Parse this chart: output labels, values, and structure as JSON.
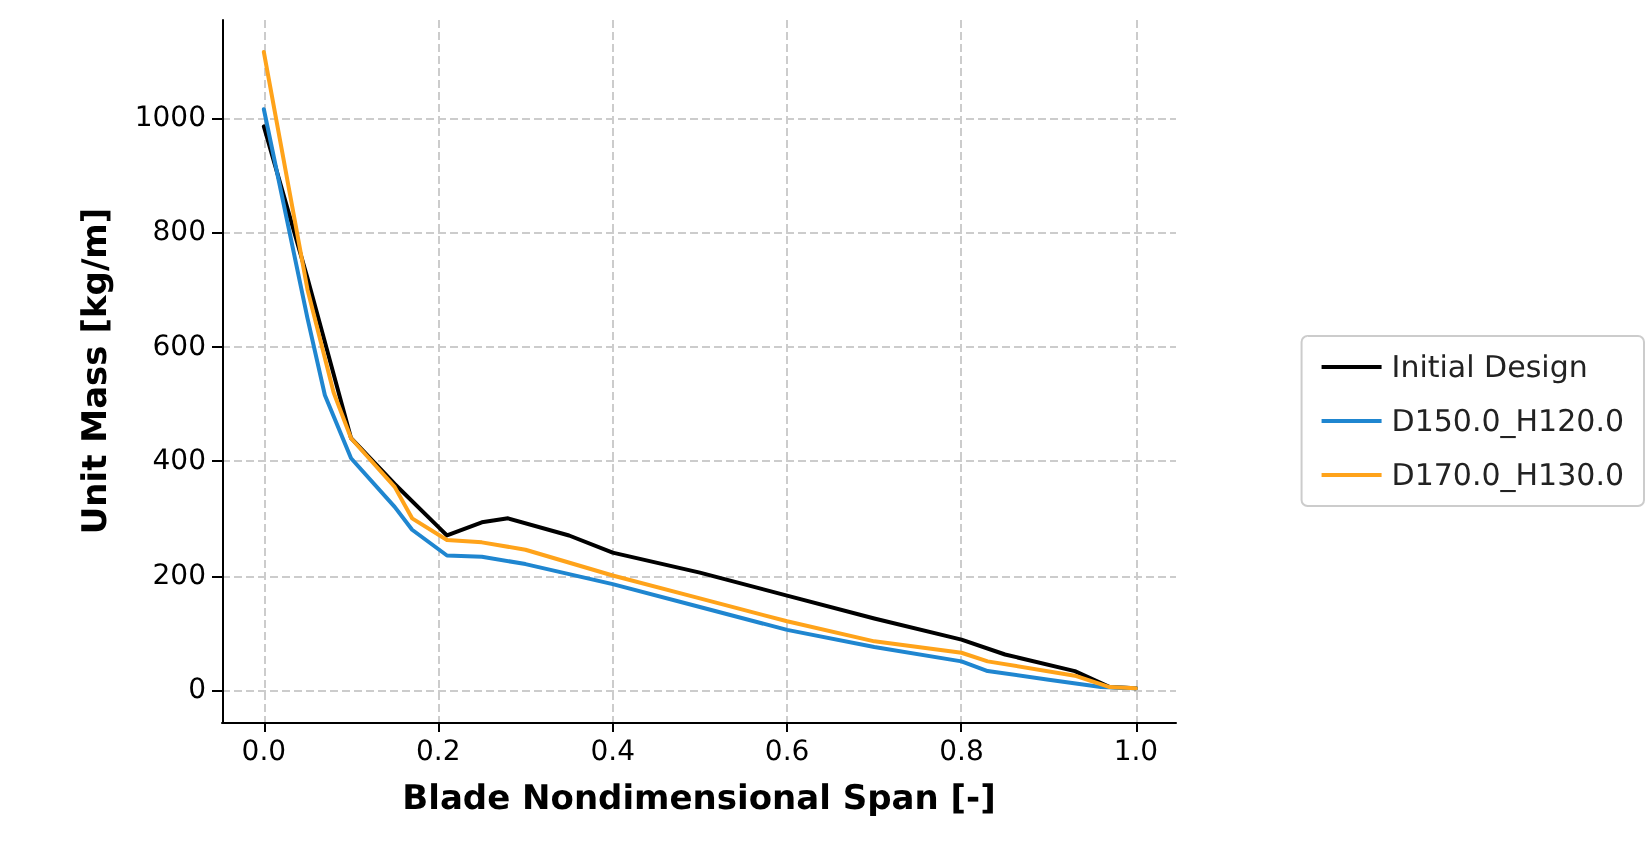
{
  "chart_data": {
    "type": "line",
    "xlabel": "Blade Nondimensional Span [-]",
    "ylabel": "Unit Mass [kg/m]",
    "xlim": [
      -0.048,
      1.046
    ],
    "xticks": [
      {
        "value": 0,
        "label": "0.0"
      },
      0.2,
      0.4,
      0.6,
      0.8,
      {
        "value": 1,
        "label": "1.0"
      }
    ],
    "ylim": [
      -56,
      1171
    ],
    "yticks": [
      0,
      200,
      400,
      600,
      800,
      1000
    ],
    "grid": true,
    "legend": "right",
    "marker": "none",
    "line_style": "solid",
    "series": [
      {
        "name": "Initial Design",
        "color": "#000000",
        "x": [
          0,
          0.05,
          0.1,
          0.15,
          0.2,
          0.21,
          0.25,
          0.28,
          0.35,
          0.4,
          0.5,
          0.6,
          0.7,
          0.8,
          0.85,
          0.93,
          0.97,
          1.0
        ],
        "values": [
          985,
          720,
          440,
          360,
          285,
          270,
          293,
          300,
          270,
          240,
          205,
          165,
          125,
          88,
          62,
          33,
          5,
          3
        ]
      },
      {
        "name": "D150.0_H120.0",
        "color": "#1f86d0",
        "x": [
          0,
          0.05,
          0.07,
          0.1,
          0.15,
          0.17,
          0.21,
          0.25,
          0.3,
          0.4,
          0.5,
          0.6,
          0.7,
          0.8,
          0.83,
          0.9,
          0.96,
          1.0
        ],
        "values": [
          1015,
          650,
          515,
          405,
          320,
          280,
          235,
          233,
          220,
          185,
          145,
          105,
          75,
          50,
          33,
          18,
          5,
          3
        ]
      },
      {
        "name": "D170.0_H130.0",
        "color": "#ffa31a",
        "x": [
          0,
          0.05,
          0.08,
          0.1,
          0.15,
          0.17,
          0.21,
          0.25,
          0.3,
          0.4,
          0.5,
          0.6,
          0.7,
          0.8,
          0.83,
          0.93,
          0.97,
          1.0
        ],
        "values": [
          1115,
          700,
          520,
          440,
          355,
          300,
          262,
          258,
          245,
          200,
          160,
          120,
          85,
          65,
          50,
          25,
          5,
          3
        ]
      }
    ]
  }
}
